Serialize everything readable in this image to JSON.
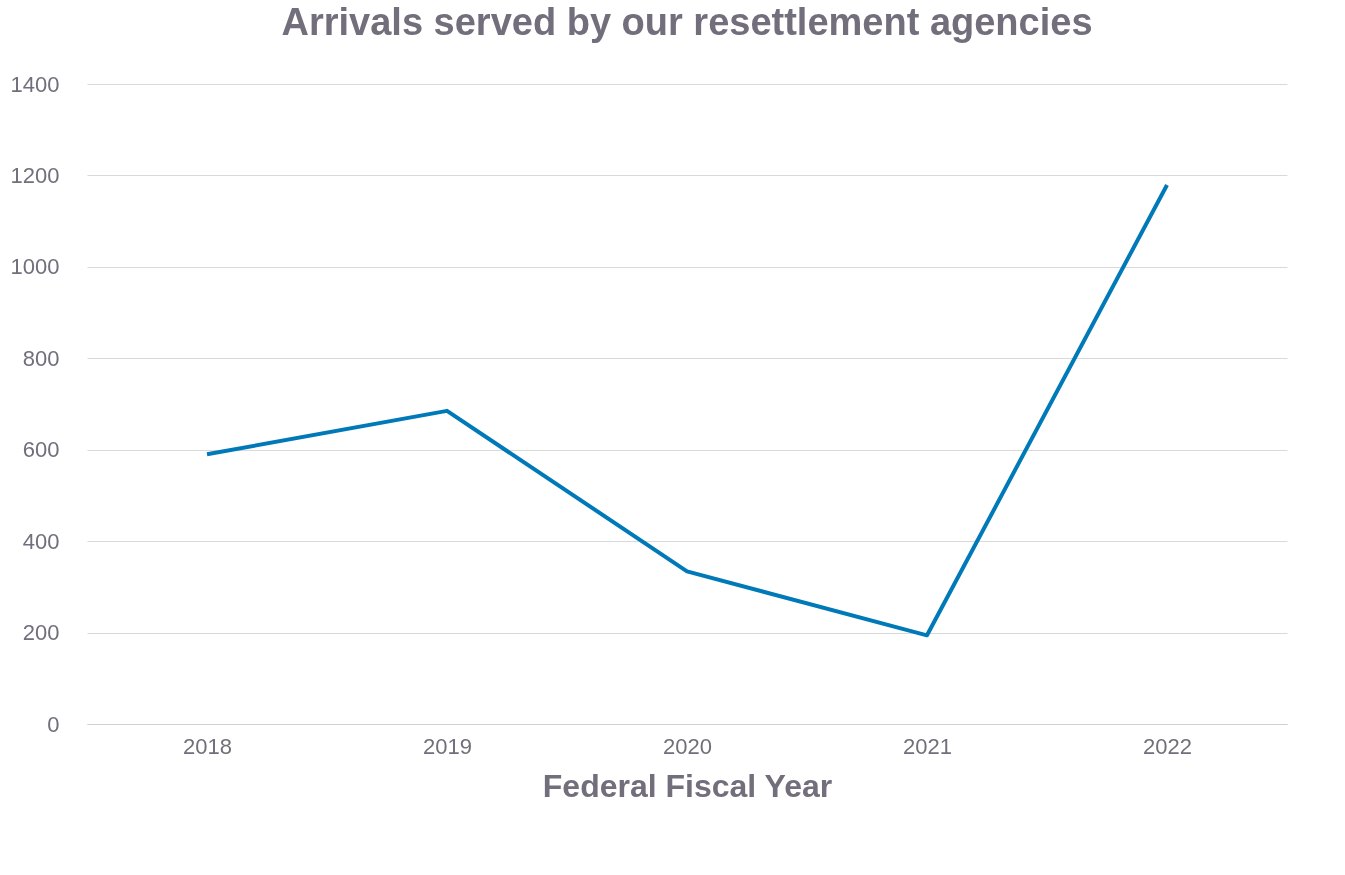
{
  "chart_data": {
    "type": "line",
    "title": "Arrivals served by our resettlement agencies",
    "xlabel": "Federal Fiscal Year",
    "categories": [
      "2018",
      "2019",
      "2020",
      "2021",
      "2022"
    ],
    "series": [
      {
        "color": "#0079b8",
        "values": [
          590,
          685,
          334,
          194,
          1179
        ]
      }
    ],
    "ylim": [
      0,
      1400
    ],
    "yticks": [
      0,
      200,
      400,
      600,
      800,
      1000,
      1200,
      1400
    ],
    "grid": "y",
    "marker": "none",
    "line_style": "solid"
  }
}
